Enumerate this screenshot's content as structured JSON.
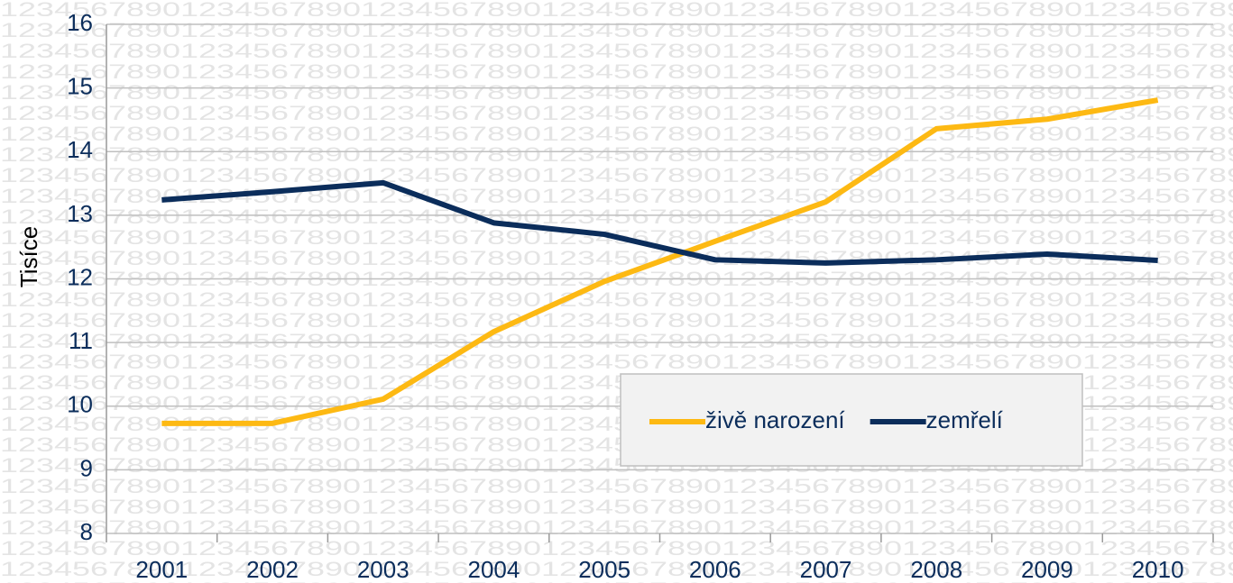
{
  "chart_data": {
    "type": "line",
    "background_text": "1234567890",
    "y_label": "Tisíce",
    "categories": [
      "2001",
      "2002",
      "2003",
      "2004",
      "2005",
      "2006",
      "2007",
      "2008",
      "2009",
      "2010"
    ],
    "series": [
      {
        "name": "živě narození",
        "color": "#fdb913",
        "values": [
          9.73,
          9.73,
          10.11,
          11.17,
          11.96,
          12.59,
          13.21,
          14.36,
          14.51,
          14.81
        ]
      },
      {
        "name": "zemřelí",
        "color": "#0b2d5b",
        "values": [
          13.24,
          13.37,
          13.51,
          12.88,
          12.7,
          12.3,
          12.25,
          12.3,
          12.39,
          12.29
        ]
      }
    ],
    "ylim": [
      8,
      16
    ],
    "yticks": [
      8,
      9,
      10,
      11,
      12,
      13,
      14,
      15,
      16
    ],
    "grid": true,
    "legend": "lower-right"
  }
}
